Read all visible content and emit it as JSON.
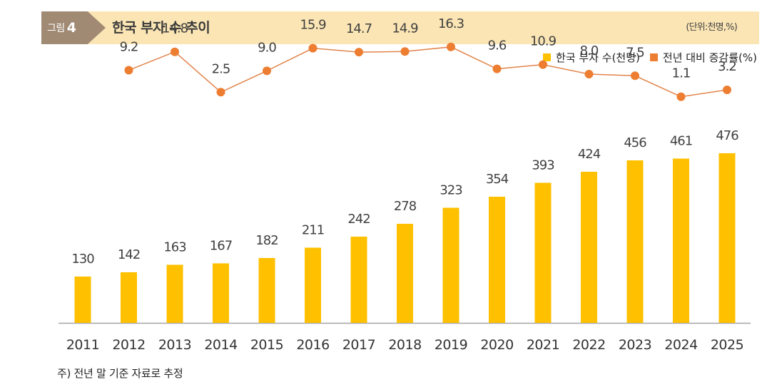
{
  "figure": {
    "label": "그림",
    "number": "4",
    "title": "한국 부자 수 추이",
    "unit": "(단위:천명,%)"
  },
  "legend": {
    "bar_label": "한국 부자 수(천명)",
    "line_label": "전년 대비 증감률(%)"
  },
  "colors": {
    "bar": "#ffc000",
    "line": "#e2844a",
    "point": "#ed7d31",
    "title_band": "#fbe5b4",
    "fig_tab": "#a08a74"
  },
  "footnote": "주) 전년 말 기준 자료로 추정",
  "chart_data": {
    "type": "bar+line",
    "categories": [
      "2011",
      "2012",
      "2013",
      "2014",
      "2015",
      "2016",
      "2017",
      "2018",
      "2019",
      "2020",
      "2021",
      "2022",
      "2023",
      "2024",
      "2025"
    ],
    "series": [
      {
        "name": "한국 부자 수(천명)",
        "type": "bar",
        "values": [
          130,
          142,
          163,
          167,
          182,
          211,
          242,
          278,
          323,
          354,
          393,
          424,
          456,
          461,
          476
        ],
        "labels": [
          "130",
          "142",
          "163",
          "167",
          "182",
          "211",
          "242",
          "278",
          "323",
          "354",
          "393",
          "424",
          "456",
          "461",
          "476"
        ]
      },
      {
        "name": "전년 대비 증감률(%)",
        "type": "line",
        "values": [
          null,
          9.2,
          14.8,
          2.5,
          9.0,
          15.9,
          14.7,
          14.9,
          16.3,
          9.6,
          10.9,
          8.0,
          7.5,
          1.1,
          3.2
        ],
        "labels": [
          null,
          "9.2",
          "14.8",
          "2.5",
          "9.0",
          "15.9",
          "14.7",
          "14.9",
          "16.3",
          "9.6",
          "10.9",
          "8.0",
          "7.5",
          "1.1",
          "3.2"
        ]
      }
    ],
    "bar_axis_range": [
      0,
      500
    ],
    "line_axis_range": [
      -22,
      18
    ],
    "grid": false,
    "legend_position": "top-right"
  }
}
